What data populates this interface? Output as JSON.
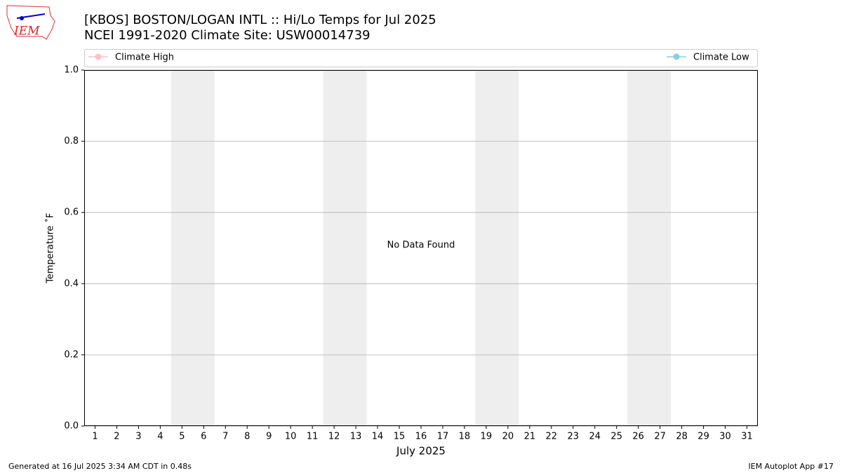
{
  "chart_data": {
    "type": "line",
    "title": "[KBOS] BOSTON/LOGAN INTL :: Hi/Lo Temps for Jul 2025",
    "subtitle": "NCEI 1991-2020 Climate Site: USW00014739",
    "xlabel": "July 2025",
    "ylabel": "Temperature ˚F",
    "annotation": "No Data Found",
    "x": [
      1,
      2,
      3,
      4,
      5,
      6,
      7,
      8,
      9,
      10,
      11,
      12,
      13,
      14,
      15,
      16,
      17,
      18,
      19,
      20,
      21,
      22,
      23,
      24,
      25,
      26,
      27,
      28,
      29,
      30,
      31
    ],
    "xlim": [
      0.5,
      31.5
    ],
    "xticks": [
      1,
      2,
      3,
      4,
      5,
      6,
      7,
      8,
      9,
      10,
      11,
      12,
      13,
      14,
      15,
      16,
      17,
      18,
      19,
      20,
      21,
      22,
      23,
      24,
      25,
      26,
      27,
      28,
      29,
      30,
      31
    ],
    "ylim": [
      0,
      1
    ],
    "yticks": [
      {
        "value": 0,
        "label": "0.0"
      },
      {
        "value": 0.2,
        "label": "0.2"
      },
      {
        "value": 0.4,
        "label": "0.4"
      },
      {
        "value": 0.6,
        "label": "0.6"
      },
      {
        "value": 0.8,
        "label": "0.8"
      },
      {
        "value": 1,
        "label": "1.0"
      }
    ],
    "grid": true,
    "shaded_ranges": [
      [
        5,
        6
      ],
      [
        12,
        13
      ],
      [
        19,
        20
      ],
      [
        26,
        27
      ]
    ],
    "shade_color": "#eeeeee",
    "series": [
      {
        "name": "Climate High",
        "color": "pink",
        "values": [
          null,
          null,
          null,
          null,
          null,
          null,
          null,
          null,
          null,
          null,
          null,
          null,
          null,
          null,
          null,
          null,
          null,
          null,
          null,
          null,
          null,
          null,
          null,
          null,
          null,
          null,
          null,
          null,
          null,
          null,
          null
        ]
      },
      {
        "name": "Climate Low",
        "color": "skyblue",
        "values": [
          null,
          null,
          null,
          null,
          null,
          null,
          null,
          null,
          null,
          null,
          null,
          null,
          null,
          null,
          null,
          null,
          null,
          null,
          null,
          null,
          null,
          null,
          null,
          null,
          null,
          null,
          null,
          null,
          null,
          null,
          null
        ]
      }
    ]
  },
  "logo": "IEM",
  "footer_left": "Generated at 16 Jul 2025 3:34 AM CDT in 0.48s",
  "footer_right": "IEM Autoplot App #17"
}
